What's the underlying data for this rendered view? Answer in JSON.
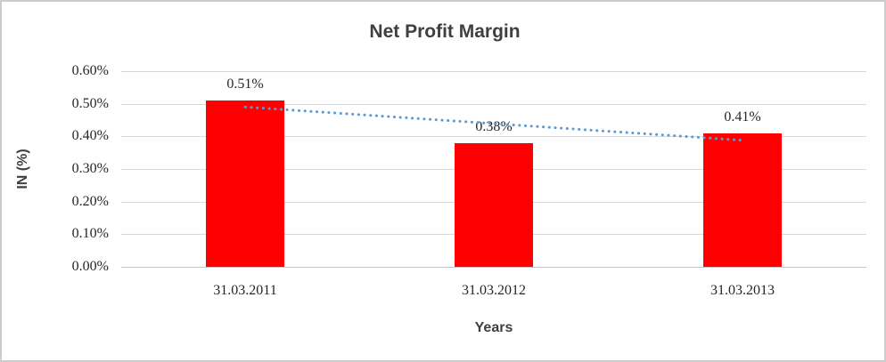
{
  "window": {
    "background_color": "#ffffff",
    "border_color": "#cccccc"
  },
  "chart_data": {
    "type": "bar",
    "title": "Net Profit Margin",
    "xlabel": "Years",
    "ylabel": "IN (%)",
    "categories": [
      "31.03.2011",
      "31.03.2012",
      "31.03.2013"
    ],
    "values": [
      0.51,
      0.38,
      0.41
    ],
    "data_labels": [
      "0.51%",
      "0.38%",
      "0.41%"
    ],
    "yticks": [
      "0.60%",
      "0.50%",
      "0.40%",
      "0.30%",
      "0.20%",
      "0.10%",
      "0.00%"
    ],
    "ylim": [
      0,
      0.6
    ],
    "grid": true,
    "legend": "none",
    "bar_color": "#ff0000",
    "gridline_color": "#d9d9d9",
    "axis_line_color": "#c6c6c6",
    "title_color": "#3f3f3f",
    "tick_label_color": "#262626",
    "trendline": {
      "type": "linear",
      "style": "dotted",
      "color": "#5b9bd5",
      "start_value": 0.49,
      "end_value": 0.388
    }
  }
}
